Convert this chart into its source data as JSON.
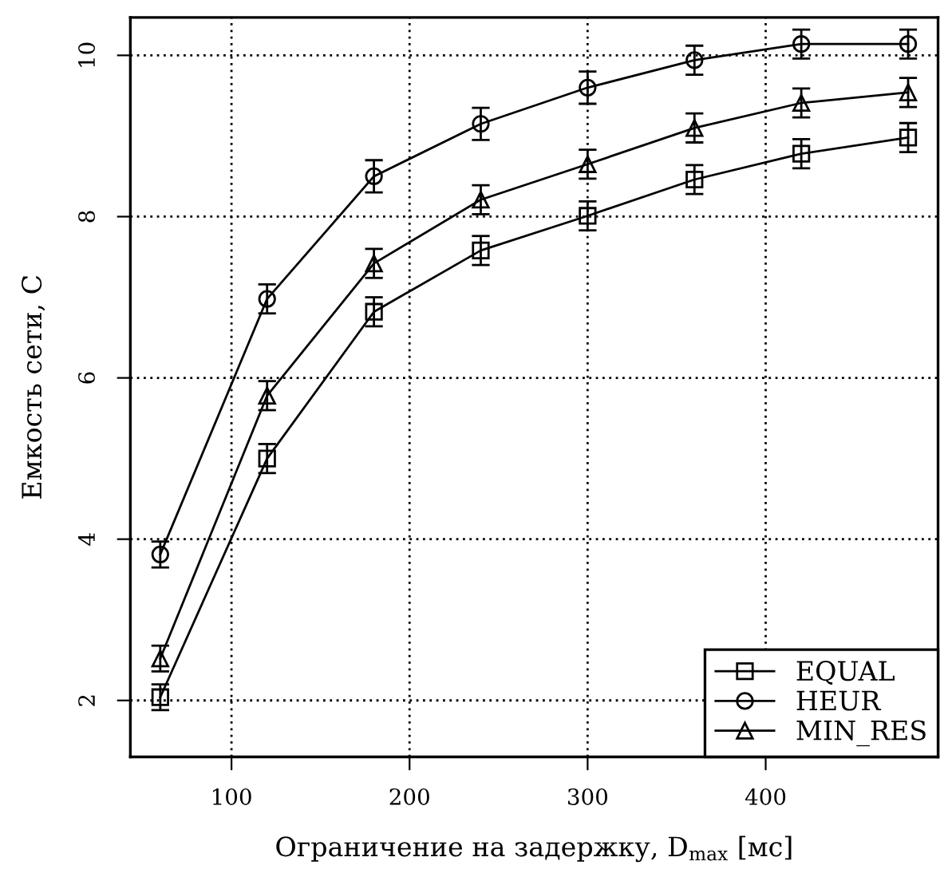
{
  "chart_data": {
    "type": "line",
    "xlabel": "Ограничение на задержку, D$_{max}$ [мс]",
    "ylabel": "Емкость сети, C",
    "x": [
      60,
      120,
      180,
      240,
      300,
      360,
      420,
      480
    ],
    "series": [
      {
        "name": "EQUAL",
        "color": "#000000",
        "marker": "square",
        "values": [
          2.04,
          5.0,
          6.82,
          7.58,
          8.01,
          8.46,
          8.78,
          8.98
        ],
        "errors": [
          0.16,
          0.18,
          0.18,
          0.18,
          0.18,
          0.18,
          0.18,
          0.18
        ]
      },
      {
        "name": "HEUR",
        "color": "#000000",
        "marker": "circle",
        "values": [
          3.81,
          6.98,
          8.5,
          9.15,
          9.6,
          9.94,
          10.14,
          10.14
        ],
        "errors": [
          0.16,
          0.18,
          0.2,
          0.2,
          0.2,
          0.18,
          0.18,
          0.18
        ]
      },
      {
        "name": "MIN_RES",
        "color": "#000000",
        "marker": "triangle",
        "values": [
          2.52,
          5.78,
          7.42,
          8.21,
          8.65,
          9.1,
          9.41,
          9.54
        ],
        "errors": [
          0.16,
          0.18,
          0.18,
          0.18,
          0.18,
          0.18,
          0.18,
          0.18
        ]
      }
    ],
    "xlim": [
      43.2,
      496.8
    ],
    "xticks": [
      100,
      200,
      300,
      400
    ],
    "ylim": [
      1.3,
      10.47
    ],
    "yticks": [
      2,
      4,
      6,
      8,
      10
    ],
    "grid": true,
    "legend": "bottom right",
    "line_style": "solid"
  }
}
